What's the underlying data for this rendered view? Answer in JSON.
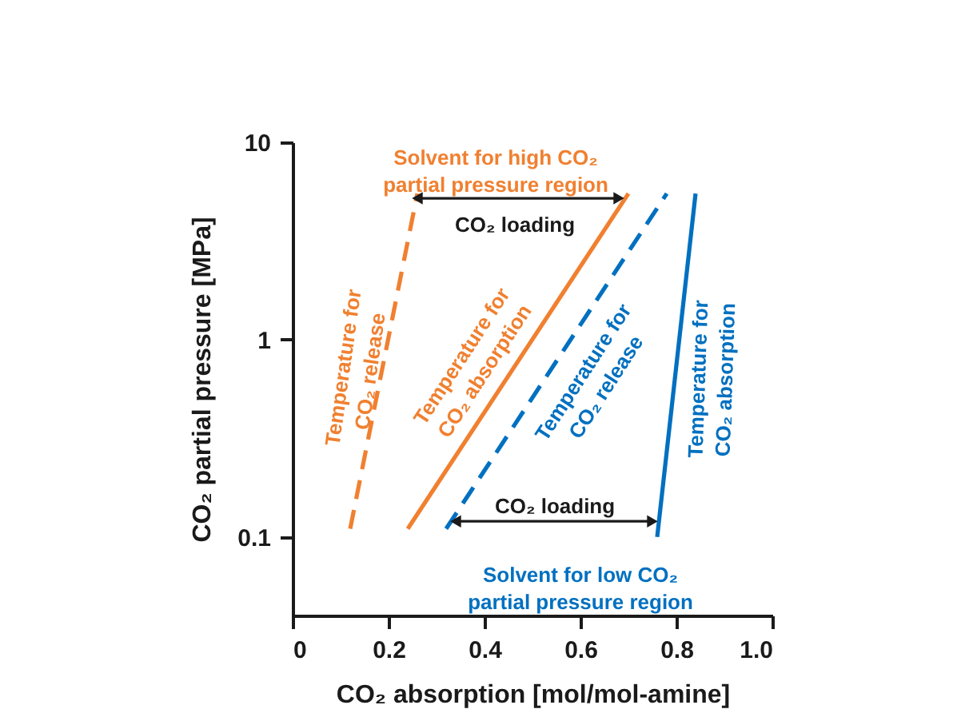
{
  "chart_data": {
    "type": "line",
    "xlabel": "CO₂ absorption [mol/mol-amine]",
    "ylabel": "CO₂ partial pressure [MPa]",
    "log": "y",
    "xlim": [
      0,
      1
    ],
    "xticks": [
      {
        "value": 0,
        "label": "0"
      },
      0.2,
      0.4,
      0.6,
      0.8,
      {
        "value": 1,
        "label": "1.0"
      }
    ],
    "ylim": [
      0.04,
      10
    ],
    "yticks": [
      0.1,
      1,
      10
    ],
    "grid": false,
    "series": [
      {
        "color": "#f08030",
        "line_style": "dashed",
        "x": [
          0.12,
          0.26
        ],
        "values": [
          0.11,
          5.5
        ]
      },
      {
        "color": "#f08030",
        "line_style": "solid",
        "x": [
          0.24,
          0.7
        ],
        "values": [
          0.11,
          5.5
        ]
      },
      {
        "color": "#0070c0",
        "line_style": "dashed",
        "x": [
          0.32,
          0.78
        ],
        "values": [
          0.11,
          5.5
        ]
      },
      {
        "color": "#0070c0",
        "line_style": "solid",
        "x": [
          0.76,
          0.84
        ],
        "values": [
          0.1,
          5.5
        ]
      },
      {
        "color": "#1a1a1a",
        "line_style": "solid",
        "marker": "triangle",
        "x": [
          0.26,
          0.68
        ],
        "values": [
          5.2,
          5.2
        ]
      },
      {
        "color": "#1a1a1a",
        "line_style": "solid",
        "marker": "triangle",
        "x": [
          0.34,
          0.75
        ],
        "values": [
          0.12,
          0.12
        ]
      }
    ],
    "annotations": [
      "Solvent for high CO₂\npartial pressure region",
      "CO₂ loading",
      "Temperature for\nCO₂ release",
      "Temperature for\nCO₂ absorption",
      "Temperature for\nCO₂ release",
      "Temperature for\nCO₂ absorption",
      "CO₂ loading",
      "Solvent for low CO₂\npartial pressure region"
    ]
  }
}
